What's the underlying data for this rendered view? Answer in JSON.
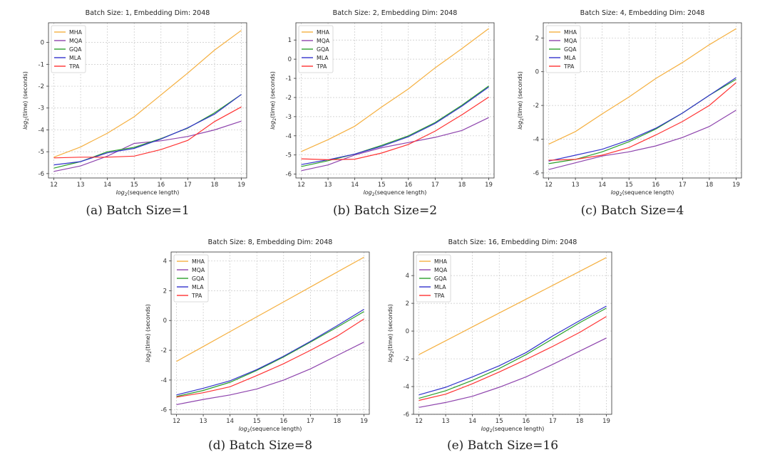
{
  "chart_data": [
    {
      "type": "line",
      "title": "Batch Size: 1, Embedding Dim: 2048",
      "caption": "(a)  Batch Size=1",
      "xlabel": "log2(sequence length)",
      "ylabel": "log2(time) (seconds)",
      "x": [
        12,
        13,
        14,
        15,
        16,
        17,
        18,
        19
      ],
      "xlim": [
        11.8,
        19.2
      ],
      "ylim": [
        -6.2,
        0.9
      ],
      "yticks": [
        -6,
        -5,
        -4,
        -3,
        -2,
        -1,
        0
      ],
      "series": [
        {
          "name": "MHA",
          "color": "#f5b041",
          "values": [
            -5.25,
            -4.78,
            -4.15,
            -3.4,
            -2.4,
            -1.4,
            -0.35,
            0.55
          ]
        },
        {
          "name": "MQA",
          "color": "#8e44ad",
          "values": [
            -5.9,
            -5.65,
            -5.2,
            -4.62,
            -4.5,
            -4.3,
            -4.0,
            -3.6
          ]
        },
        {
          "name": "GQA",
          "color": "#2ca02c",
          "values": [
            -5.75,
            -5.45,
            -5.0,
            -4.8,
            -4.4,
            -3.92,
            -3.22,
            -2.38
          ]
        },
        {
          "name": "MLA",
          "color": "#3333cc",
          "values": [
            -5.6,
            -5.45,
            -5.05,
            -4.85,
            -4.42,
            -3.9,
            -3.28,
            -2.38
          ]
        },
        {
          "name": "TPA",
          "color": "#ff3333",
          "values": [
            -5.28,
            -5.25,
            -5.25,
            -5.2,
            -4.9,
            -4.48,
            -3.62,
            -2.95
          ]
        }
      ]
    },
    {
      "type": "line",
      "title": "Batch Size: 2, Embedding Dim: 2048",
      "caption": "(b)  Batch Size=2",
      "xlabel": "log2(sequence length)",
      "ylabel": "log2(time) (seconds)",
      "x": [
        12,
        13,
        14,
        15,
        16,
        17,
        18,
        19
      ],
      "xlim": [
        11.8,
        19.2
      ],
      "ylim": [
        -6.2,
        1.9
      ],
      "yticks": [
        -6,
        -5,
        -4,
        -3,
        -2,
        -1,
        0,
        1
      ],
      "series": [
        {
          "name": "MHA",
          "color": "#f5b041",
          "values": [
            -4.82,
            -4.2,
            -3.5,
            -2.5,
            -1.55,
            -0.45,
            0.55,
            1.6
          ]
        },
        {
          "name": "MQA",
          "color": "#8e44ad",
          "values": [
            -5.82,
            -5.52,
            -5.0,
            -4.62,
            -4.35,
            -4.08,
            -3.72,
            -3.05
          ]
        },
        {
          "name": "GQA",
          "color": "#2ca02c",
          "values": [
            -5.6,
            -5.3,
            -4.95,
            -4.5,
            -4.0,
            -3.3,
            -2.4,
            -1.4
          ]
        },
        {
          "name": "MLA",
          "color": "#3333cc",
          "values": [
            -5.5,
            -5.25,
            -4.95,
            -4.55,
            -4.05,
            -3.35,
            -2.45,
            -1.45
          ]
        },
        {
          "name": "TPA",
          "color": "#ff3333",
          "values": [
            -5.2,
            -5.25,
            -5.22,
            -4.9,
            -4.45,
            -3.75,
            -2.9,
            -1.98
          ]
        }
      ]
    },
    {
      "type": "line",
      "title": "Batch Size: 4, Embedding Dim: 2048",
      "caption": "(c)  Batch Size=4",
      "xlabel": "log2(sequence length)",
      "ylabel": "log2(time) (seconds)",
      "x": [
        12,
        13,
        14,
        15,
        16,
        17,
        18,
        19
      ],
      "xlim": [
        11.8,
        19.2
      ],
      "ylim": [
        -6.3,
        2.9
      ],
      "yticks": [
        -6,
        -4,
        -2,
        0,
        2
      ],
      "series": [
        {
          "name": "MHA",
          "color": "#f5b041",
          "values": [
            -4.3,
            -3.55,
            -2.5,
            -1.5,
            -0.4,
            0.55,
            1.6,
            2.55
          ]
        },
        {
          "name": "MQA",
          "color": "#8e44ad",
          "values": [
            -5.8,
            -5.4,
            -5.0,
            -4.75,
            -4.4,
            -3.9,
            -3.25,
            -2.28
          ]
        },
        {
          "name": "GQA",
          "color": "#2ca02c",
          "values": [
            -5.45,
            -5.2,
            -4.75,
            -4.15,
            -3.4,
            -2.45,
            -1.4,
            -0.45
          ]
        },
        {
          "name": "MLA",
          "color": "#3333cc",
          "values": [
            -5.3,
            -4.95,
            -4.6,
            -4.05,
            -3.35,
            -2.45,
            -1.4,
            -0.35
          ]
        },
        {
          "name": "TPA",
          "color": "#ff3333",
          "values": [
            -5.25,
            -5.2,
            -4.95,
            -4.5,
            -3.75,
            -2.95,
            -2.0,
            -0.65
          ]
        }
      ]
    },
    {
      "type": "line",
      "title": "Batch Size: 8, Embedding Dim: 2048",
      "caption": "(d)  Batch Size=8",
      "xlabel": "log2(sequence length)",
      "ylabel": "log2(time) (seconds)",
      "x": [
        12,
        13,
        14,
        15,
        16,
        17,
        18,
        19
      ],
      "xlim": [
        11.8,
        19.2
      ],
      "ylim": [
        -6.3,
        4.6
      ],
      "yticks": [
        -6,
        -4,
        -2,
        0,
        2,
        4
      ],
      "series": [
        {
          "name": "MHA",
          "color": "#f5b041",
          "values": [
            -2.75,
            -1.75,
            -0.75,
            0.25,
            1.25,
            2.25,
            3.25,
            4.25
          ]
        },
        {
          "name": "MQA",
          "color": "#8e44ad",
          "values": [
            -5.65,
            -5.3,
            -5.0,
            -4.6,
            -4.0,
            -3.25,
            -2.35,
            -1.45
          ]
        },
        {
          "name": "GQA",
          "color": "#2ca02c",
          "values": [
            -5.1,
            -4.7,
            -4.15,
            -3.35,
            -2.45,
            -1.45,
            -0.45,
            0.6
          ]
        },
        {
          "name": "MLA",
          "color": "#3333cc",
          "values": [
            -5.0,
            -4.55,
            -4.05,
            -3.3,
            -2.4,
            -1.4,
            -0.35,
            0.75
          ]
        },
        {
          "name": "TPA",
          "color": "#ff3333",
          "values": [
            -5.15,
            -4.85,
            -4.45,
            -3.7,
            -2.9,
            -2.0,
            -1.05,
            0.1
          ]
        }
      ]
    },
    {
      "type": "line",
      "title": "Batch Size: 16, Embedding Dim: 2048",
      "caption": "(e)  Batch Size=16",
      "xlabel": "log2(sequence length)",
      "ylabel": "log2(time) (seconds)",
      "x": [
        12,
        13,
        14,
        15,
        16,
        17,
        18,
        19
      ],
      "xlim": [
        11.8,
        19.2
      ],
      "ylim": [
        -6.0,
        5.7
      ],
      "yticks": [
        -6,
        -4,
        -2,
        0,
        2,
        4
      ],
      "series": [
        {
          "name": "MHA",
          "color": "#f5b041",
          "values": [
            -1.7,
            -0.7,
            0.3,
            1.3,
            2.3,
            3.3,
            4.3,
            5.3
          ]
        },
        {
          "name": "MQA",
          "color": "#8e44ad",
          "values": [
            -5.5,
            -5.15,
            -4.7,
            -4.05,
            -3.3,
            -2.4,
            -1.45,
            -0.5
          ]
        },
        {
          "name": "GQA",
          "color": "#2ca02c",
          "values": [
            -4.85,
            -4.3,
            -3.55,
            -2.7,
            -1.7,
            -0.55,
            0.6,
            1.65
          ]
        },
        {
          "name": "MLA",
          "color": "#3333cc",
          "values": [
            -4.6,
            -4.05,
            -3.3,
            -2.5,
            -1.55,
            -0.35,
            0.75,
            1.8
          ]
        },
        {
          "name": "TPA",
          "color": "#ff3333",
          "values": [
            -5.0,
            -4.55,
            -3.8,
            -2.95,
            -2.05,
            -1.1,
            -0.1,
            1.05
          ]
        }
      ]
    }
  ]
}
